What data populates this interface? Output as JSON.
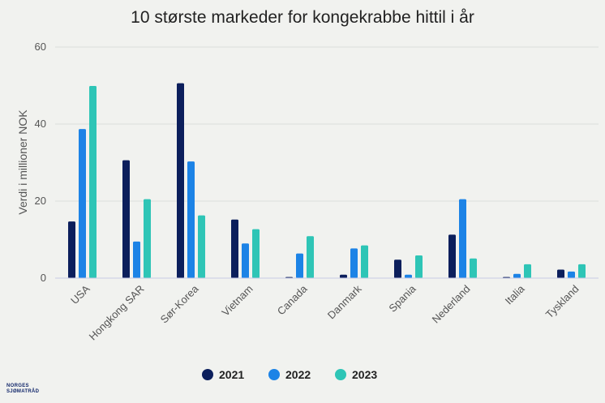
{
  "logo": {
    "line1": "NORGES",
    "line2": "SJØMATRÅD"
  },
  "chart_data": {
    "type": "bar",
    "title": "10 største markeder for kongekrabbe hittil i år",
    "xlabel": "",
    "ylabel": "Verdi i millioner NOK",
    "ylim": [
      0,
      60
    ],
    "yticks": [
      0,
      20,
      40,
      60
    ],
    "grid": true,
    "legend_position": "bottom",
    "categories": [
      "USA",
      "Hongkong SAR",
      "Sør-Korea",
      "Vietnam",
      "Canada",
      "Danmark",
      "Spania",
      "Nederland",
      "Italia",
      "Tyskland"
    ],
    "series": [
      {
        "name": "2021",
        "color": "#0c1f5c",
        "values": [
          14.7,
          30.6,
          50.6,
          15.2,
          0.3,
          0.9,
          4.8,
          11.3,
          0.3,
          2.2
        ]
      },
      {
        "name": "2022",
        "color": "#1c83e6",
        "values": [
          38.7,
          9.5,
          30.3,
          9.0,
          6.4,
          7.7,
          0.9,
          20.5,
          1.1,
          1.7
        ]
      },
      {
        "name": "2023",
        "color": "#2ec5b6",
        "values": [
          49.9,
          20.5,
          16.3,
          12.7,
          10.9,
          8.5,
          5.9,
          5.1,
          3.6,
          3.6
        ]
      }
    ]
  }
}
